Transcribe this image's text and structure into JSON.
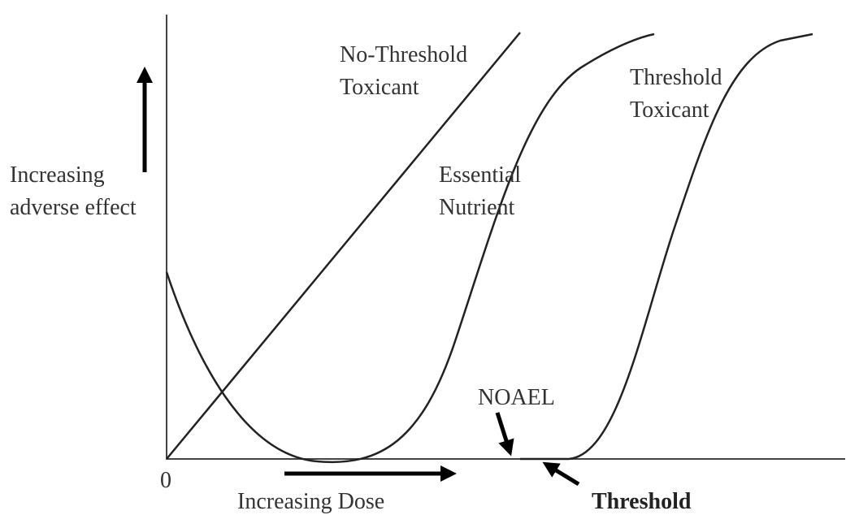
{
  "labels": {
    "no_threshold_toxicant": [
      "No-Threshold",
      "Toxicant"
    ],
    "threshold_toxicant": [
      "Threshold",
      "Toxicant"
    ],
    "essential_nutrient": [
      "Essential",
      "Nutrient"
    ],
    "y_axis": [
      "Increasing",
      "adverse effect"
    ],
    "origin": "0",
    "x_axis": "Increasing Dose",
    "noael": "NOAEL",
    "threshold": "Threshold"
  }
}
